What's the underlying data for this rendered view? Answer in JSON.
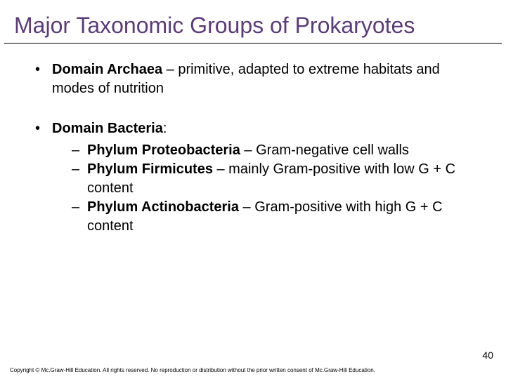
{
  "title": "Major Taxonomic Groups of Prokaryotes",
  "title_color": "#5b3b7a",
  "title_fontsize": 32,
  "body_fontsize": 20,
  "text_color": "#000000",
  "background_color": "#ffffff",
  "bullets": [
    {
      "bold": "Domain Archaea",
      "rest": " – primitive, adapted to extreme habitats and modes of nutrition",
      "subs": []
    },
    {
      "bold": "Domain Bacteria",
      "rest": ":",
      "subs": [
        {
          "bold": "Phylum Proteobacteria",
          "rest": " – Gram-negative cell walls"
        },
        {
          "bold": "Phylum Firmicutes",
          "rest": " – mainly Gram-positive with low G + C content"
        },
        {
          "bold": "Phylum Actinobacteria",
          "rest": " – Gram-positive with high G + C content"
        }
      ]
    }
  ],
  "page_number": "40",
  "copyright": "Copyright © Mc.Graw-Hill Education. All rights reserved. No reproduction or distribution without the prior written consent of Mc.Graw-Hill Education."
}
